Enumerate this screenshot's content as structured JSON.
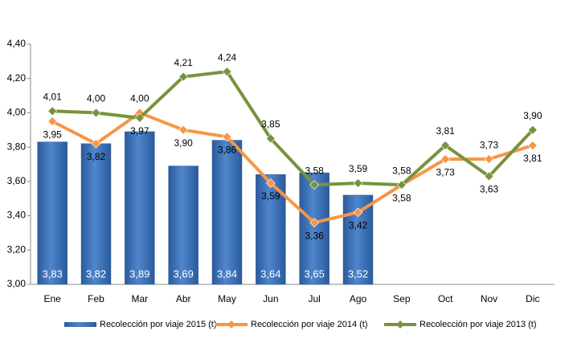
{
  "chart_data": {
    "type": "combo",
    "categories": [
      "Ene",
      "Feb",
      "Mar",
      "Abr",
      "May",
      "Jun",
      "Jul",
      "Ago",
      "Sep",
      "Oct",
      "Nov",
      "Dic"
    ],
    "ylim": [
      3.0,
      4.4
    ],
    "yticks": [
      {
        "value": 3.0,
        "label": "3,00"
      },
      {
        "value": 3.2,
        "label": "3,20"
      },
      {
        "value": 3.4,
        "label": "3,40"
      },
      {
        "value": 3.6,
        "label": "3,60"
      },
      {
        "value": 3.8,
        "label": "3,80"
      },
      {
        "value": 4.0,
        "label": "4,00"
      },
      {
        "value": 4.2,
        "label": "4,20"
      },
      {
        "value": 4.4,
        "label": "4,40"
      }
    ],
    "grid": false,
    "legend": "bottom",
    "series": [
      {
        "name": "Recolección por viaje 2015 (t)",
        "type": "bar",
        "color": "#3c6db0",
        "values": [
          3.83,
          3.82,
          3.89,
          3.69,
          3.84,
          3.64,
          3.65,
          3.52,
          null,
          null,
          null,
          null
        ],
        "value_labels": [
          "3,83",
          "3,82",
          "3,89",
          "3,69",
          "3,84",
          "3,64",
          "3,65",
          "3,52",
          null,
          null,
          null,
          null
        ]
      },
      {
        "name": "Recolección por viaje 2014 (t)",
        "type": "line",
        "color": "#f79646",
        "values": [
          3.95,
          3.82,
          4.0,
          3.9,
          3.86,
          3.59,
          3.36,
          3.42,
          3.58,
          3.73,
          3.73,
          3.81
        ],
        "value_labels": [
          "3,95",
          "3,82",
          "4,00",
          "3,90",
          "3,86",
          "3,59",
          "3,36",
          "3,42",
          "3,58",
          "3,73",
          "3,73",
          "3,81"
        ]
      },
      {
        "name": "Recolección por viaje 2013 (t)",
        "type": "line",
        "color": "#77933c",
        "values": [
          4.01,
          4.0,
          3.97,
          4.21,
          4.24,
          3.85,
          3.58,
          3.59,
          3.58,
          3.81,
          3.63,
          3.9
        ],
        "value_labels": [
          "4,01",
          "4,00",
          "3,97",
          "4,21",
          "4,24",
          "3,85",
          "3,58",
          "3,59",
          "3,58",
          "3,81",
          "3,63",
          "3,90"
        ]
      }
    ]
  }
}
